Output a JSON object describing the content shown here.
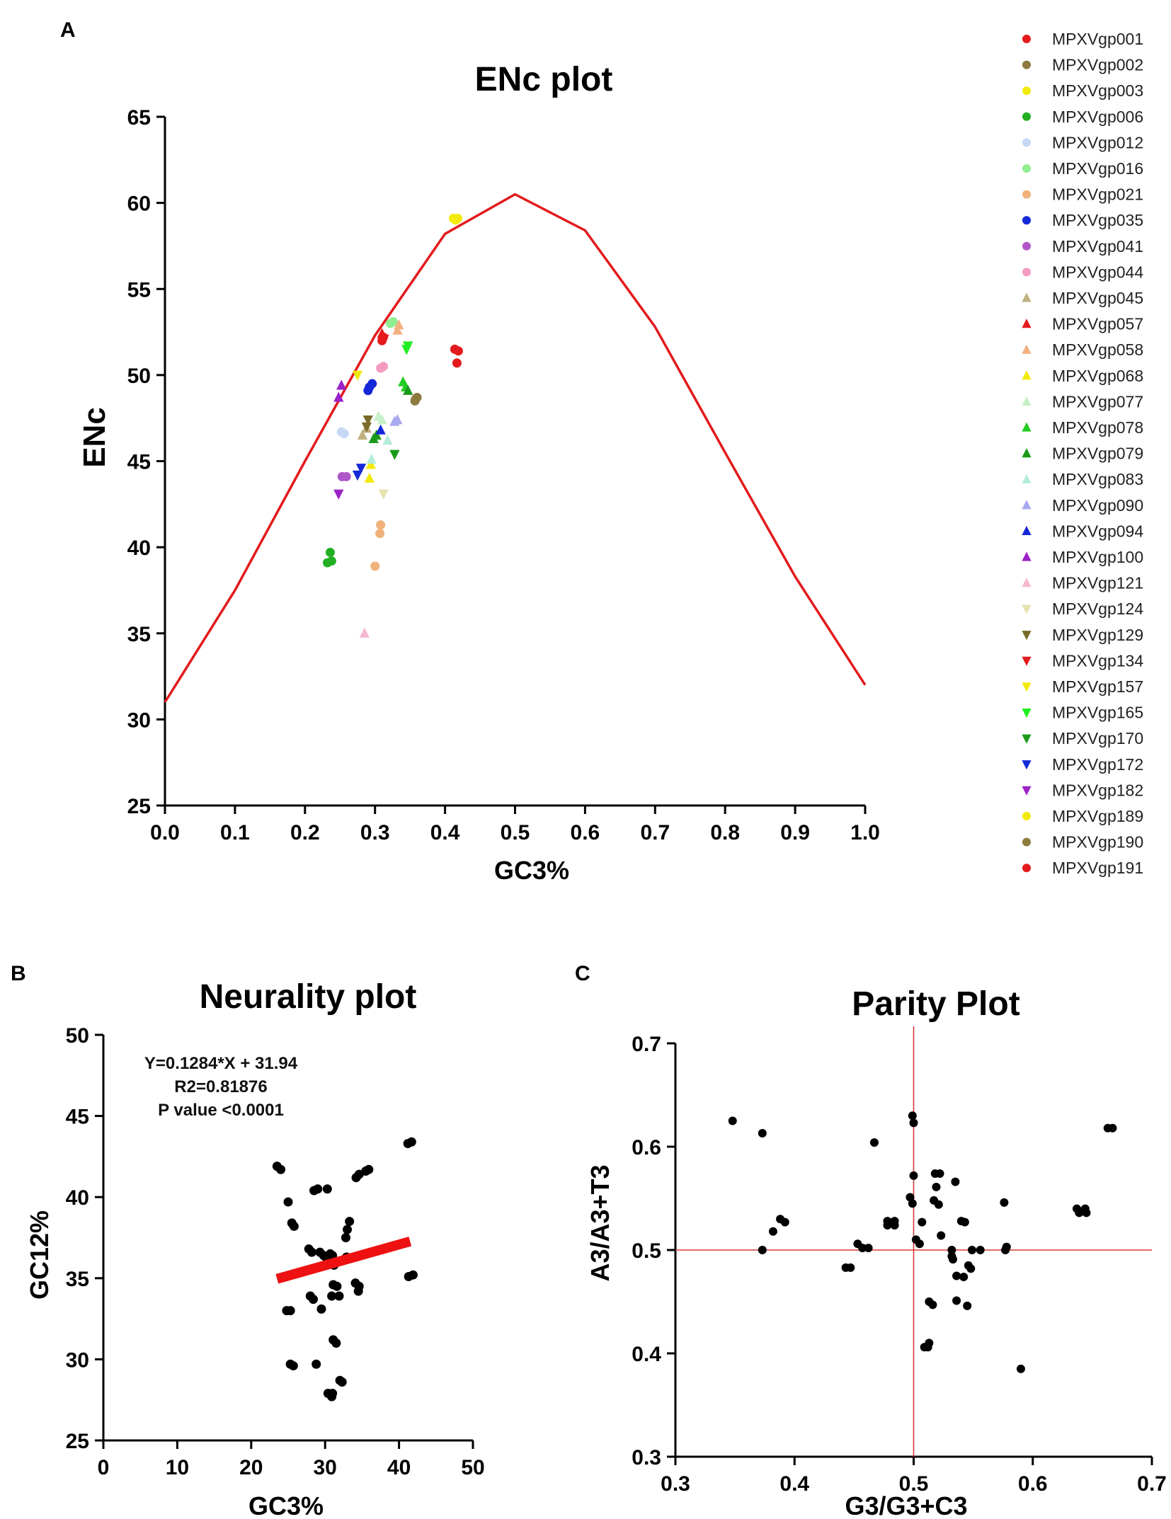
{
  "chart_data": [
    {
      "panel": "A",
      "type": "scatter",
      "title": "ENc plot",
      "xlabel": "GC3%",
      "ylabel": "ENc",
      "xlim": [
        0.0,
        1.0
      ],
      "ylim": [
        25,
        65
      ],
      "xticks": [
        "0.0",
        "0.1",
        "0.2",
        "0.3",
        "0.4",
        "0.5",
        "0.6",
        "0.7",
        "0.8",
        "0.9",
        "1.0"
      ],
      "yticks": [
        "25",
        "30",
        "35",
        "40",
        "45",
        "50",
        "55",
        "60",
        "65"
      ],
      "legend_position": "right",
      "expected_curve": {
        "color": "#e31a1c",
        "x": [
          0.0,
          0.1,
          0.2,
          0.3,
          0.4,
          0.5,
          0.6,
          0.7,
          0.8,
          0.9,
          1.0
        ],
        "y": [
          31.0,
          37.5,
          45.0,
          52.3,
          58.2,
          60.5,
          58.4,
          52.8,
          45.5,
          38.3,
          32.0
        ]
      },
      "series": [
        {
          "name": "MPXVgp001",
          "marker": "circle",
          "color": "#e41a1c",
          "points": [
            [
              0.31,
              52.0
            ],
            [
              0.312,
              52.2
            ]
          ]
        },
        {
          "name": "MPXVgp002",
          "marker": "circle",
          "color": "#8c7a3f",
          "points": [
            [
              0.358,
              48.6
            ],
            [
              0.36,
              48.7
            ]
          ]
        },
        {
          "name": "MPXVgp003",
          "marker": "circle",
          "color": "#f2ea0c",
          "points": [
            [
              0.412,
              59.1
            ],
            [
              0.418,
              59.1
            ]
          ]
        },
        {
          "name": "MPXVgp006",
          "marker": "circle",
          "color": "#22b022",
          "points": [
            [
              0.232,
              39.1
            ],
            [
              0.238,
              39.2
            ],
            [
              0.236,
              39.7
            ]
          ]
        },
        {
          "name": "MPXVgp012",
          "marker": "circle",
          "color": "#c5d9f5",
          "points": [
            [
              0.252,
              46.7
            ],
            [
              0.256,
              46.6
            ]
          ]
        },
        {
          "name": "MPXVgp016",
          "marker": "circle",
          "color": "#90ee90",
          "points": [
            [
              0.322,
              53.0
            ],
            [
              0.326,
              53.1
            ]
          ]
        },
        {
          "name": "MPXVgp021",
          "marker": "circle",
          "color": "#f0b27a",
          "points": [
            [
              0.3,
              38.9
            ],
            [
              0.307,
              40.8
            ],
            [
              0.308,
              41.3
            ]
          ]
        },
        {
          "name": "MPXVgp035",
          "marker": "circle",
          "color": "#1428d8",
          "points": [
            [
              0.292,
              49.3
            ],
            [
              0.296,
              49.5
            ],
            [
              0.29,
              49.1
            ]
          ]
        },
        {
          "name": "MPXVgp041",
          "marker": "circle",
          "color": "#b057c8",
          "points": [
            [
              0.253,
              44.1
            ],
            [
              0.259,
              44.1
            ]
          ]
        },
        {
          "name": "MPXVgp044",
          "marker": "circle",
          "color": "#f49ac2",
          "points": [
            [
              0.308,
              50.4
            ],
            [
              0.312,
              50.5
            ]
          ]
        },
        {
          "name": "MPXVgp045",
          "marker": "triangle-up",
          "color": "#c0b080",
          "points": [
            [
              0.282,
              46.5
            ],
            [
              0.288,
              46.9
            ]
          ]
        },
        {
          "name": "MPXVgp057",
          "marker": "triangle-up",
          "color": "#e41a1c",
          "points": [
            [
              0.31,
              52.4
            ]
          ]
        },
        {
          "name": "MPXVgp058",
          "marker": "triangle-up",
          "color": "#f4b183",
          "points": [
            [
              0.332,
              52.6
            ],
            [
              0.334,
              52.9
            ]
          ]
        },
        {
          "name": "MPXVgp068",
          "marker": "triangle-up",
          "color": "#f2ea0c",
          "points": [
            [
              0.292,
              44.0
            ],
            [
              0.294,
              44.8
            ]
          ]
        },
        {
          "name": "MPXVgp077",
          "marker": "triangle-up",
          "color": "#c8f0c8",
          "points": [
            [
              0.305,
              47.6
            ],
            [
              0.31,
              47.4
            ]
          ]
        },
        {
          "name": "MPXVgp078",
          "marker": "triangle-up",
          "color": "#22cc22",
          "points": [
            [
              0.34,
              49.6
            ],
            [
              0.344,
              49.3
            ]
          ]
        },
        {
          "name": "MPXVgp079",
          "marker": "triangle-up",
          "color": "#1a9a1a",
          "points": [
            [
              0.298,
              46.3
            ],
            [
              0.302,
              46.5
            ],
            [
              0.347,
              49.1
            ]
          ]
        },
        {
          "name": "MPXVgp083",
          "marker": "triangle-up",
          "color": "#b5ecd9",
          "points": [
            [
              0.295,
              45.1
            ],
            [
              0.318,
              46.2
            ]
          ]
        },
        {
          "name": "MPXVgp090",
          "marker": "triangle-up",
          "color": "#a8a8f0",
          "points": [
            [
              0.328,
              47.3
            ],
            [
              0.332,
              47.4
            ]
          ]
        },
        {
          "name": "MPXVgp094",
          "marker": "triangle-up",
          "color": "#1428d8",
          "points": [
            [
              0.308,
              46.8
            ]
          ]
        },
        {
          "name": "MPXVgp100",
          "marker": "triangle-up",
          "color": "#9b22c8",
          "points": [
            [
              0.248,
              48.7
            ],
            [
              0.252,
              49.4
            ]
          ]
        },
        {
          "name": "MPXVgp121",
          "marker": "triangle-up",
          "color": "#f5b8d0",
          "points": [
            [
              0.285,
              35.0
            ]
          ]
        },
        {
          "name": "MPXVgp124",
          "marker": "triangle-down",
          "color": "#e8e2b0",
          "points": [
            [
              0.312,
              43.1
            ]
          ]
        },
        {
          "name": "MPXVgp129",
          "marker": "triangle-down",
          "color": "#7a6a2a",
          "points": [
            [
              0.288,
              47.0
            ],
            [
              0.29,
              47.4
            ]
          ]
        },
        {
          "name": "MPXVgp134",
          "marker": "triangle-down",
          "color": "#e41a1c",
          "points": [
            [
              0.313,
              52.1
            ]
          ]
        },
        {
          "name": "MPXVgp157",
          "marker": "triangle-down",
          "color": "#f2ea0c",
          "points": [
            [
              0.275,
              50.0
            ]
          ]
        },
        {
          "name": "MPXVgp165",
          "marker": "triangle-down",
          "color": "#22ee22",
          "points": [
            [
              0.345,
              51.5
            ],
            [
              0.347,
              51.7
            ]
          ]
        },
        {
          "name": "MPXVgp170",
          "marker": "triangle-down",
          "color": "#1a9a1a",
          "points": [
            [
              0.328,
              45.4
            ]
          ]
        },
        {
          "name": "MPXVgp172",
          "marker": "triangle-down",
          "color": "#1428d8",
          "points": [
            [
              0.275,
              44.2
            ],
            [
              0.28,
              44.6
            ]
          ]
        },
        {
          "name": "MPXVgp182",
          "marker": "triangle-down",
          "color": "#9b22c8",
          "points": [
            [
              0.248,
              43.1
            ]
          ]
        },
        {
          "name": "MPXVgp189",
          "marker": "circle",
          "color": "#f2ea0c",
          "points": [
            [
              0.415,
              59.0
            ]
          ]
        },
        {
          "name": "MPXVgp190",
          "marker": "circle",
          "color": "#8c7a3f",
          "points": [
            [
              0.357,
              48.5
            ]
          ]
        },
        {
          "name": "MPXVgp191",
          "marker": "circle",
          "color": "#e41a1c",
          "points": [
            [
              0.414,
              51.5
            ],
            [
              0.419,
              51.4
            ],
            [
              0.417,
              50.7
            ]
          ]
        }
      ]
    },
    {
      "panel": "B",
      "type": "scatter",
      "title": "Neurality plot",
      "xlabel": "GC3%",
      "ylabel": "GC12%",
      "xlim": [
        0,
        50
      ],
      "ylim": [
        25,
        50
      ],
      "xticks": [
        "0",
        "10",
        "20",
        "30",
        "40",
        "50"
      ],
      "yticks": [
        "25",
        "30",
        "35",
        "40",
        "45",
        "50"
      ],
      "annotations": [
        "Y=0.1284*X + 31.94",
        "R2=0.81876",
        "P value <0.0001"
      ],
      "regression": {
        "slope": 0.1284,
        "intercept": 31.94,
        "x_range": [
          23.5,
          41.5
        ],
        "color": "#ee1111"
      },
      "points": [
        [
          23.5,
          41.9
        ],
        [
          24.0,
          41.7
        ],
        [
          25.0,
          39.7
        ],
        [
          25.5,
          38.4
        ],
        [
          25.8,
          38.2
        ],
        [
          24.8,
          33.0
        ],
        [
          25.3,
          33.0
        ],
        [
          25.3,
          29.7
        ],
        [
          25.7,
          29.6
        ],
        [
          27.8,
          36.8
        ],
        [
          28.2,
          36.6
        ],
        [
          28.0,
          33.9
        ],
        [
          28.4,
          33.7
        ],
        [
          28.5,
          40.4
        ],
        [
          29.0,
          40.5
        ],
        [
          28.8,
          29.7
        ],
        [
          29.3,
          36.6
        ],
        [
          29.8,
          36.4
        ],
        [
          29.5,
          33.1
        ],
        [
          30.3,
          40.5
        ],
        [
          30.1,
          36.3
        ],
        [
          30.7,
          36.5
        ],
        [
          30.4,
          27.9
        ],
        [
          30.9,
          27.7
        ],
        [
          31.0,
          27.9
        ],
        [
          31.0,
          36.4
        ],
        [
          31.2,
          35.8
        ],
        [
          31.5,
          36.0
        ],
        [
          31.1,
          34.6
        ],
        [
          31.6,
          34.5
        ],
        [
          30.9,
          33.9
        ],
        [
          31.1,
          31.2
        ],
        [
          31.5,
          31.0
        ],
        [
          31.9,
          33.9
        ],
        [
          32.0,
          28.7
        ],
        [
          32.3,
          28.6
        ],
        [
          32.8,
          37.5
        ],
        [
          33.0,
          38.0
        ],
        [
          33.3,
          38.5
        ],
        [
          32.9,
          36.3
        ],
        [
          34.2,
          41.2
        ],
        [
          34.6,
          41.4
        ],
        [
          34.1,
          34.7
        ],
        [
          34.6,
          34.5
        ],
        [
          34.5,
          34.2
        ],
        [
          35.5,
          41.6
        ],
        [
          35.9,
          41.7
        ],
        [
          41.2,
          43.3
        ],
        [
          41.7,
          43.4
        ],
        [
          41.3,
          35.1
        ],
        [
          41.9,
          35.2
        ]
      ]
    },
    {
      "panel": "C",
      "type": "scatter",
      "title": "Parity Plot",
      "xlabel": "G3/G3+C3",
      "ylabel": "A3/A3+T3",
      "xlim": [
        0.3,
        0.7
      ],
      "ylim": [
        0.3,
        0.7
      ],
      "xticks": [
        "0.3",
        "0.4",
        "0.5",
        "0.6",
        "0.7"
      ],
      "yticks": [
        "0.3",
        "0.4",
        "0.5",
        "0.6",
        "0.7"
      ],
      "reference_lines": {
        "x": 0.5,
        "y": 0.5,
        "color": "#d63a3a"
      },
      "points": [
        [
          0.348,
          0.625
        ],
        [
          0.373,
          0.613
        ],
        [
          0.373,
          0.5
        ],
        [
          0.382,
          0.518
        ],
        [
          0.388,
          0.53
        ],
        [
          0.392,
          0.527
        ],
        [
          0.443,
          0.483
        ],
        [
          0.447,
          0.483
        ],
        [
          0.453,
          0.506
        ],
        [
          0.457,
          0.502
        ],
        [
          0.462,
          0.502
        ],
        [
          0.467,
          0.604
        ],
        [
          0.478,
          0.528
        ],
        [
          0.478,
          0.524
        ],
        [
          0.484,
          0.528
        ],
        [
          0.484,
          0.524
        ],
        [
          0.497,
          0.551
        ],
        [
          0.499,
          0.63
        ],
        [
          0.5,
          0.623
        ],
        [
          0.5,
          0.572
        ],
        [
          0.499,
          0.545
        ],
        [
          0.502,
          0.51
        ],
        [
          0.505,
          0.506
        ],
        [
          0.507,
          0.527
        ],
        [
          0.509,
          0.406
        ],
        [
          0.512,
          0.406
        ],
        [
          0.513,
          0.41
        ],
        [
          0.513,
          0.45
        ],
        [
          0.516,
          0.447
        ],
        [
          0.517,
          0.548
        ],
        [
          0.518,
          0.574
        ],
        [
          0.519,
          0.561
        ],
        [
          0.521,
          0.544
        ],
        [
          0.522,
          0.574
        ],
        [
          0.523,
          0.514
        ],
        [
          0.532,
          0.5
        ],
        [
          0.532,
          0.494
        ],
        [
          0.533,
          0.491
        ],
        [
          0.535,
          0.566
        ],
        [
          0.536,
          0.475
        ],
        [
          0.536,
          0.451
        ],
        [
          0.54,
          0.528
        ],
        [
          0.542,
          0.474
        ],
        [
          0.543,
          0.527
        ],
        [
          0.545,
          0.446
        ],
        [
          0.546,
          0.485
        ],
        [
          0.548,
          0.482
        ],
        [
          0.549,
          0.5
        ],
        [
          0.556,
          0.5
        ],
        [
          0.576,
          0.546
        ],
        [
          0.578,
          0.503
        ],
        [
          0.577,
          0.5
        ],
        [
          0.59,
          0.385
        ],
        [
          0.637,
          0.54
        ],
        [
          0.639,
          0.536
        ],
        [
          0.644,
          0.54
        ],
        [
          0.645,
          0.536
        ],
        [
          0.663,
          0.618
        ],
        [
          0.667,
          0.618
        ]
      ]
    }
  ]
}
